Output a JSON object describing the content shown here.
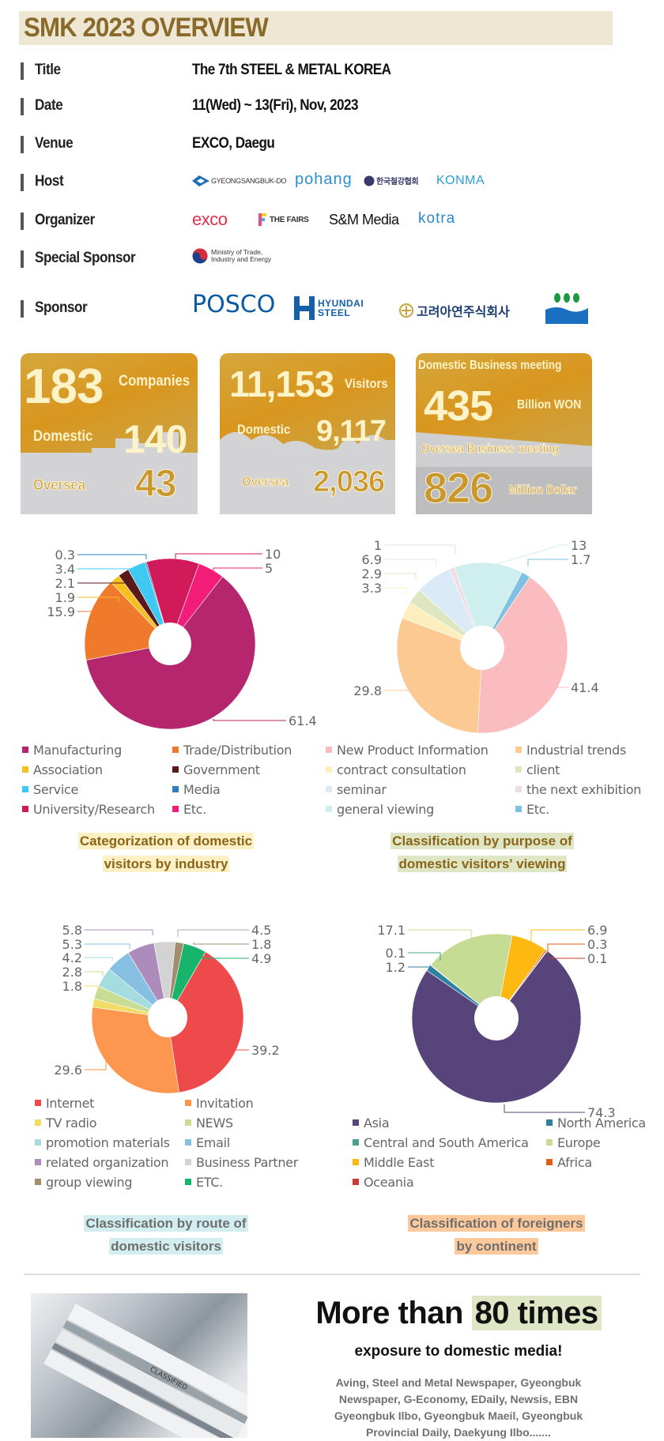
{
  "header": {
    "title": "SMK 2023 OVERVIEW"
  },
  "overview": {
    "rows": [
      {
        "label": "Title",
        "value": "The 7th STEEL & METAL KOREA"
      },
      {
        "label": "Date",
        "value": "11(Wed) ~ 13(Fri), Nov, 2023"
      },
      {
        "label": "Venue",
        "value": "EXCO, Daegu"
      },
      {
        "label": "Host"
      },
      {
        "label": "Organizer"
      },
      {
        "label": "Special Sponsor"
      },
      {
        "label": "Sponsor"
      }
    ],
    "host_logos": [
      "GYEONGSANGBUK-DO",
      "pohang",
      "한국철강협회",
      "KONMA"
    ],
    "organizer_logos": [
      "exco",
      "THE FAIRS",
      "S&M Media",
      "kotra"
    ],
    "special_sponsor_logo": {
      "line1": "Ministry of Trade,",
      "line2": "Industry and Energy"
    },
    "sponsor_logos": [
      "POSCO",
      "HYUNDAI",
      "STEEL",
      "고려아연주식회사"
    ]
  },
  "stats": {
    "companies": {
      "total": "183",
      "unit": "Companies",
      "domestic_label": "Domestic",
      "domestic": "140",
      "oversea_label": "Oversea",
      "oversea": "43"
    },
    "visitors": {
      "total": "11,153",
      "unit": "Visitors",
      "domestic_label": "Domestic",
      "domestic": "9,117",
      "oversea_label": "Oversea",
      "oversea": "2,036"
    },
    "business": {
      "domestic_label": "Domestic Business meeting",
      "domestic": "435",
      "domestic_unit": "Billion WON",
      "oversea_label": "Oversea Business meeting",
      "oversea": "826",
      "oversea_unit": "Million Dollar"
    }
  },
  "chart_data": [
    {
      "type": "pie",
      "title": "Categorization of domestic visitors by industry",
      "categories": [
        "Manufacturing",
        "Trade/Distribution",
        "Association",
        "Government",
        "Service",
        "Media",
        "University/Research",
        "Etc."
      ],
      "values": [
        61.4,
        15.9,
        1.9,
        2.1,
        3.4,
        0.3,
        10,
        5
      ],
      "colors": [
        "#b5266f",
        "#f07a2c",
        "#f6be1f",
        "#5a1a1a",
        "#3fc8f2",
        "#2f7fc1",
        "#d11a5a",
        "#f31c78"
      ],
      "legend": "bottom"
    },
    {
      "type": "pie",
      "title": "Classification by purpose of domestic visitors' viewing",
      "categories": [
        "New Product Information",
        "Industrial trends",
        "contract consultation",
        "client",
        "seminar",
        "the next exhibition",
        "general viewing",
        "Etc."
      ],
      "values": [
        41.4,
        29.8,
        3.3,
        2.9,
        6.9,
        1,
        13,
        1.7
      ],
      "colors": [
        "#fbbcbf",
        "#fdc992",
        "#fdeebe",
        "#dde6c0",
        "#dbeaf7",
        "#efdde6",
        "#cfeeee",
        "#7ec1e4"
      ],
      "legend": "bottom"
    },
    {
      "type": "pie",
      "title": "Classification by route of domestic visitors",
      "categories": [
        "Internet",
        "Invitation",
        "TV radio",
        "NEWS",
        "promotion materials",
        "Email",
        "related organization",
        "Business Partner",
        "group viewing",
        "ETC."
      ],
      "values": [
        39.2,
        29.6,
        1.8,
        2.8,
        4.2,
        5.3,
        5.8,
        4.5,
        1.8,
        4.9
      ],
      "colors": [
        "#ef4a4b",
        "#fd964e",
        "#f1dc66",
        "#c7dd93",
        "#a4dcdf",
        "#86bfe2",
        "#ad8bbb",
        "#d3d3d3",
        "#a38d70",
        "#19b46b"
      ],
      "legend": "bottom"
    },
    {
      "type": "pie",
      "title": "Classification of foreigners by continent",
      "categories": [
        "Asia",
        "North America",
        "Central and South America",
        "Europe",
        "Middle East",
        "Africa",
        "Oceania"
      ],
      "values": [
        74.3,
        1.2,
        0.1,
        17.1,
        6.9,
        0.3,
        0.1
      ],
      "colors": [
        "#57447a",
        "#2f7fa3",
        "#4aa08c",
        "#c6dc94",
        "#fdb812",
        "#e35d14",
        "#c73b3b"
      ],
      "legend": "bottom"
    }
  ],
  "chart_titles": [
    {
      "line1": "Categorization of domestic",
      "line2": "visitors by industry",
      "bg": "#fdf0c4",
      "color": "#8a6418"
    },
    {
      "line1": "Classification by purpose of",
      "line2": "domestic visitors' viewing",
      "bg": "#dfe6c5",
      "color": "#8a6418"
    },
    {
      "line1": "Classification by route of",
      "line2": "domestic visitors",
      "bg": "#d2eef0",
      "color": "#6e6e6e"
    },
    {
      "line1": "Classification of foreigners",
      "line2": "by continent",
      "bg": "#fdc99a",
      "color": "#6e6e6e"
    }
  ],
  "media": {
    "headline_prefix": "More than ",
    "headline_highlight": "80 times",
    "subtitle": "exposure to domestic media!",
    "outlets_lines": [
      "Aving, Steel and Metal Newspaper, Gyeongbuk",
      "Newspaper, G-Economy, EDaily, Newsis, EBN",
      "Gyeongbuk Ilbo, Gyeongbuk Maeil, Gyeongbuk",
      "Provincial Daily, Daekyung Ilbo......."
    ],
    "image_label": "CLASSIFIED"
  }
}
